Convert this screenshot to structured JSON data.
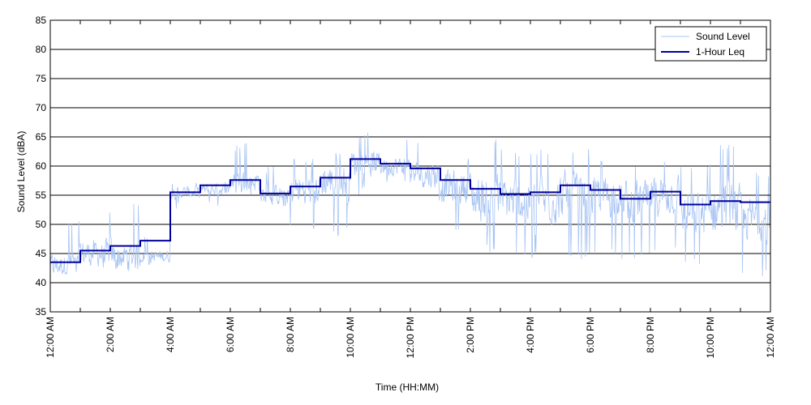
{
  "chart_data": {
    "type": "line",
    "title": "",
    "xlabel": "Time (HH:MM)",
    "ylabel": "Sound Level (dBA)",
    "xlim": [
      0,
      24
    ],
    "ylim": [
      35,
      85
    ],
    "yticks": [
      35,
      40,
      45,
      50,
      55,
      60,
      65,
      70,
      75,
      80,
      85
    ],
    "xticks": [
      {
        "x": 0,
        "label": "12:00 AM"
      },
      {
        "x": 2,
        "label": "2:00 AM"
      },
      {
        "x": 4,
        "label": "4:00 AM"
      },
      {
        "x": 6,
        "label": "6:00 AM"
      },
      {
        "x": 8,
        "label": "8:00 AM"
      },
      {
        "x": 10,
        "label": "10:00 AM"
      },
      {
        "x": 12,
        "label": "12:00 PM"
      },
      {
        "x": 14,
        "label": "2:00 PM"
      },
      {
        "x": 16,
        "label": "4:00 PM"
      },
      {
        "x": 18,
        "label": "6:00 PM"
      },
      {
        "x": 20,
        "label": "8:00 PM"
      },
      {
        "x": 22,
        "label": "10:00 PM"
      },
      {
        "x": 24,
        "label": "12:00 AM"
      }
    ],
    "minor_xticks": [
      1,
      3,
      5,
      7,
      9,
      11,
      13,
      15,
      17,
      19,
      21,
      23
    ],
    "grid": "horizontal",
    "legend_position": "top-right",
    "series": [
      {
        "name": "Sound Level",
        "color": "#a8c4f4",
        "style": "thin",
        "hourly_mean": [
          43.0,
          45.0,
          44.5,
          44.5,
          55.5,
          56.0,
          57.5,
          55.0,
          56.0,
          57.5,
          60.5,
          60.0,
          58.5,
          56.5,
          54.5,
          54.0,
          54.0,
          55.0,
          55.0,
          54.0,
          55.0,
          52.0,
          52.5,
          51.0
        ],
        "hourly_min": [
          41.5,
          42.0,
          42.0,
          43.0,
          52.5,
          53.0,
          55.0,
          52.0,
          49.0,
          48.0,
          55.0,
          57.0,
          53.0,
          48.0,
          45.0,
          44.0,
          44.0,
          44.0,
          45.0,
          44.0,
          45.0,
          43.0,
          43.0,
          41.0
        ],
        "hourly_max": [
          51.0,
          53.0,
          54.5,
          48.0,
          57.5,
          58.0,
          64.0,
          60.0,
          62.0,
          63.0,
          66.0,
          65.0,
          64.0,
          62.0,
          65.0,
          63.0,
          63.0,
          63.0,
          62.0,
          61.0,
          62.0,
          61.0,
          64.0,
          59.0
        ]
      },
      {
        "name": "1-Hour Leq",
        "color": "#000099",
        "style": "step",
        "x": [
          0,
          1,
          2,
          3,
          4,
          5,
          6,
          7,
          8,
          9,
          10,
          11,
          12,
          13,
          14,
          15,
          16,
          17,
          18,
          19,
          20,
          21,
          22,
          23
        ],
        "values": [
          43.5,
          45.5,
          46.3,
          47.2,
          55.5,
          56.7,
          57.6,
          55.3,
          56.5,
          58.0,
          61.2,
          60.4,
          59.6,
          57.6,
          56.1,
          55.2,
          55.5,
          56.7,
          55.9,
          54.4,
          55.6,
          53.4,
          54.0,
          53.8
        ]
      }
    ]
  }
}
